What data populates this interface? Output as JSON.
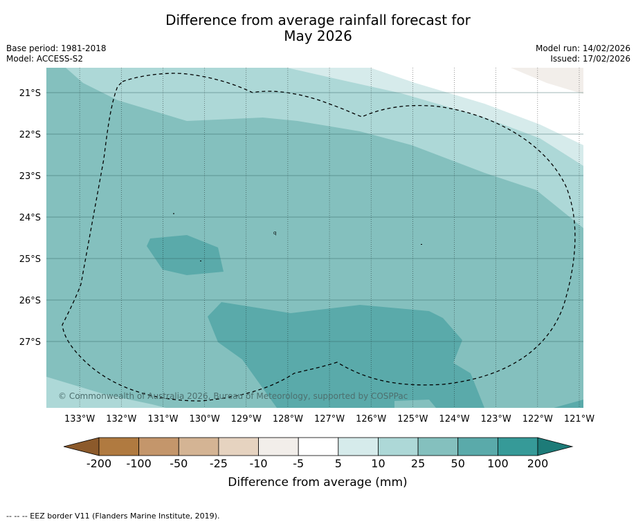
{
  "title": {
    "line1": "Difference from average rainfall forecast for",
    "line2": "May 2026"
  },
  "meta": {
    "base_period": "Base period: 1981-2018",
    "model": "Model: ACCESS-S2",
    "model_run": "Model run: 14/02/2026",
    "issued": "Issued: 17/02/2026"
  },
  "map": {
    "lon_range": [
      -133.8,
      -120.9
    ],
    "lat_range": [
      -28.6,
      -20.4
    ],
    "lon_ticks": [
      {
        "value": -133,
        "label": "133°W"
      },
      {
        "value": -132,
        "label": "132°W"
      },
      {
        "value": -131,
        "label": "131°W"
      },
      {
        "value": -130,
        "label": "130°W"
      },
      {
        "value": -129,
        "label": "129°W"
      },
      {
        "value": -128,
        "label": "128°W"
      },
      {
        "value": -127,
        "label": "127°W"
      },
      {
        "value": -126,
        "label": "126°W"
      },
      {
        "value": -125,
        "label": "125°W"
      },
      {
        "value": -124,
        "label": "124°W"
      },
      {
        "value": -123,
        "label": "123°W"
      },
      {
        "value": -122,
        "label": "122°W"
      },
      {
        "value": -121,
        "label": "121°W"
      }
    ],
    "lat_ticks": [
      {
        "value": -21,
        "label": "21°S"
      },
      {
        "value": -22,
        "label": "22°S"
      },
      {
        "value": -23,
        "label": "23°S"
      },
      {
        "value": -24,
        "label": "24°S"
      },
      {
        "value": -25,
        "label": "25°S"
      },
      {
        "value": -26,
        "label": "26°S"
      },
      {
        "value": -27,
        "label": "27°S"
      }
    ],
    "copyright": "© Commonwealth of Australia 2026, Bureau of Meteorology, supported by COSPPac"
  },
  "legend": {
    "boundaries": [
      "-200",
      "-100",
      "-50",
      "-25",
      "-10",
      "-5",
      "5",
      "10",
      "25",
      "50",
      "100",
      "200"
    ],
    "colors": [
      "#8c5a2b",
      "#b07a40",
      "#c4966b",
      "#d4b494",
      "#e6d3c0",
      "#f2eeea",
      "#ffffff",
      "#d6ebeb",
      "#add8d7",
      "#84c0be",
      "#5aaaaa",
      "#369a98",
      "#1d7b78"
    ],
    "label": "Difference from average (mm)"
  },
  "footer": "--  --  -- EEZ border V11 (Flanders Marine Institute, 2019)."
}
